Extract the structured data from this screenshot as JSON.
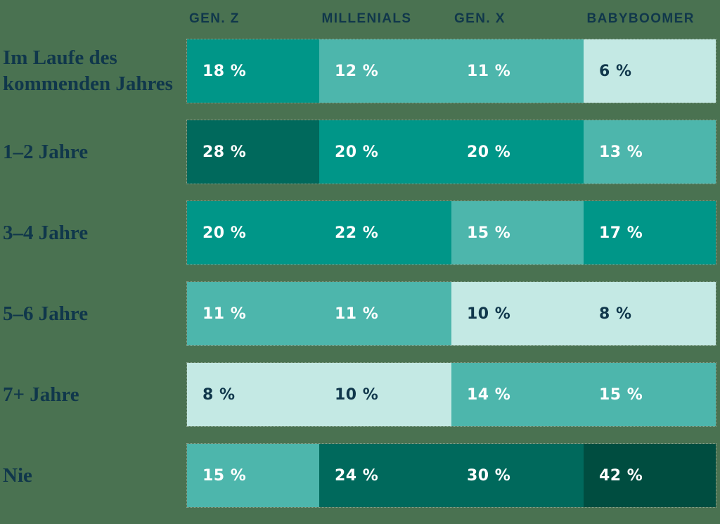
{
  "background_color": "#4a7251",
  "text_color": "#10374b",
  "chart_data": {
    "type": "heatmap",
    "title": "",
    "value_unit": "%",
    "legend_position": "none",
    "columns": [
      "GEN. Z",
      "MILLENIALS",
      "GEN. X",
      "BABYBOOMER"
    ],
    "rows": [
      {
        "label": "Im Laufe des kommenden Jahres",
        "values": [
          18,
          12,
          11,
          6
        ],
        "cells": [
          "18 %",
          "12 %",
          "11 %",
          "6 %"
        ]
      },
      {
        "label": "1–2 Jahre",
        "values": [
          28,
          20,
          20,
          13
        ],
        "cells": [
          "28 %",
          "20 %",
          "20 %",
          "13 %"
        ]
      },
      {
        "label": "3–4 Jahre",
        "values": [
          20,
          22,
          15,
          17
        ],
        "cells": [
          "20 %",
          "22 %",
          "15 %",
          "17 %"
        ]
      },
      {
        "label": "5–6 Jahre",
        "values": [
          11,
          11,
          10,
          8
        ],
        "cells": [
          "11 %",
          "11 %",
          "10 %",
          "8 %"
        ]
      },
      {
        "label": "7+ Jahre",
        "values": [
          8,
          10,
          14,
          15
        ],
        "cells": [
          "8 %",
          "10 %",
          "14 %",
          "15 %"
        ]
      },
      {
        "label": "Nie",
        "values": [
          15,
          24,
          30,
          42
        ],
        "cells": [
          "15 %",
          "24 %",
          "30 %",
          "42 %"
        ]
      }
    ],
    "color_scale": {
      "thresholds": [
        10,
        16,
        23,
        40
      ],
      "palette": {
        "1": "#c4e9e4",
        "2": "#4db6ac",
        "3": "#009688",
        "4": "#00695c",
        "5": "#004d40"
      },
      "light_text": "#ffffff",
      "dark_text": "#10374b"
    }
  }
}
